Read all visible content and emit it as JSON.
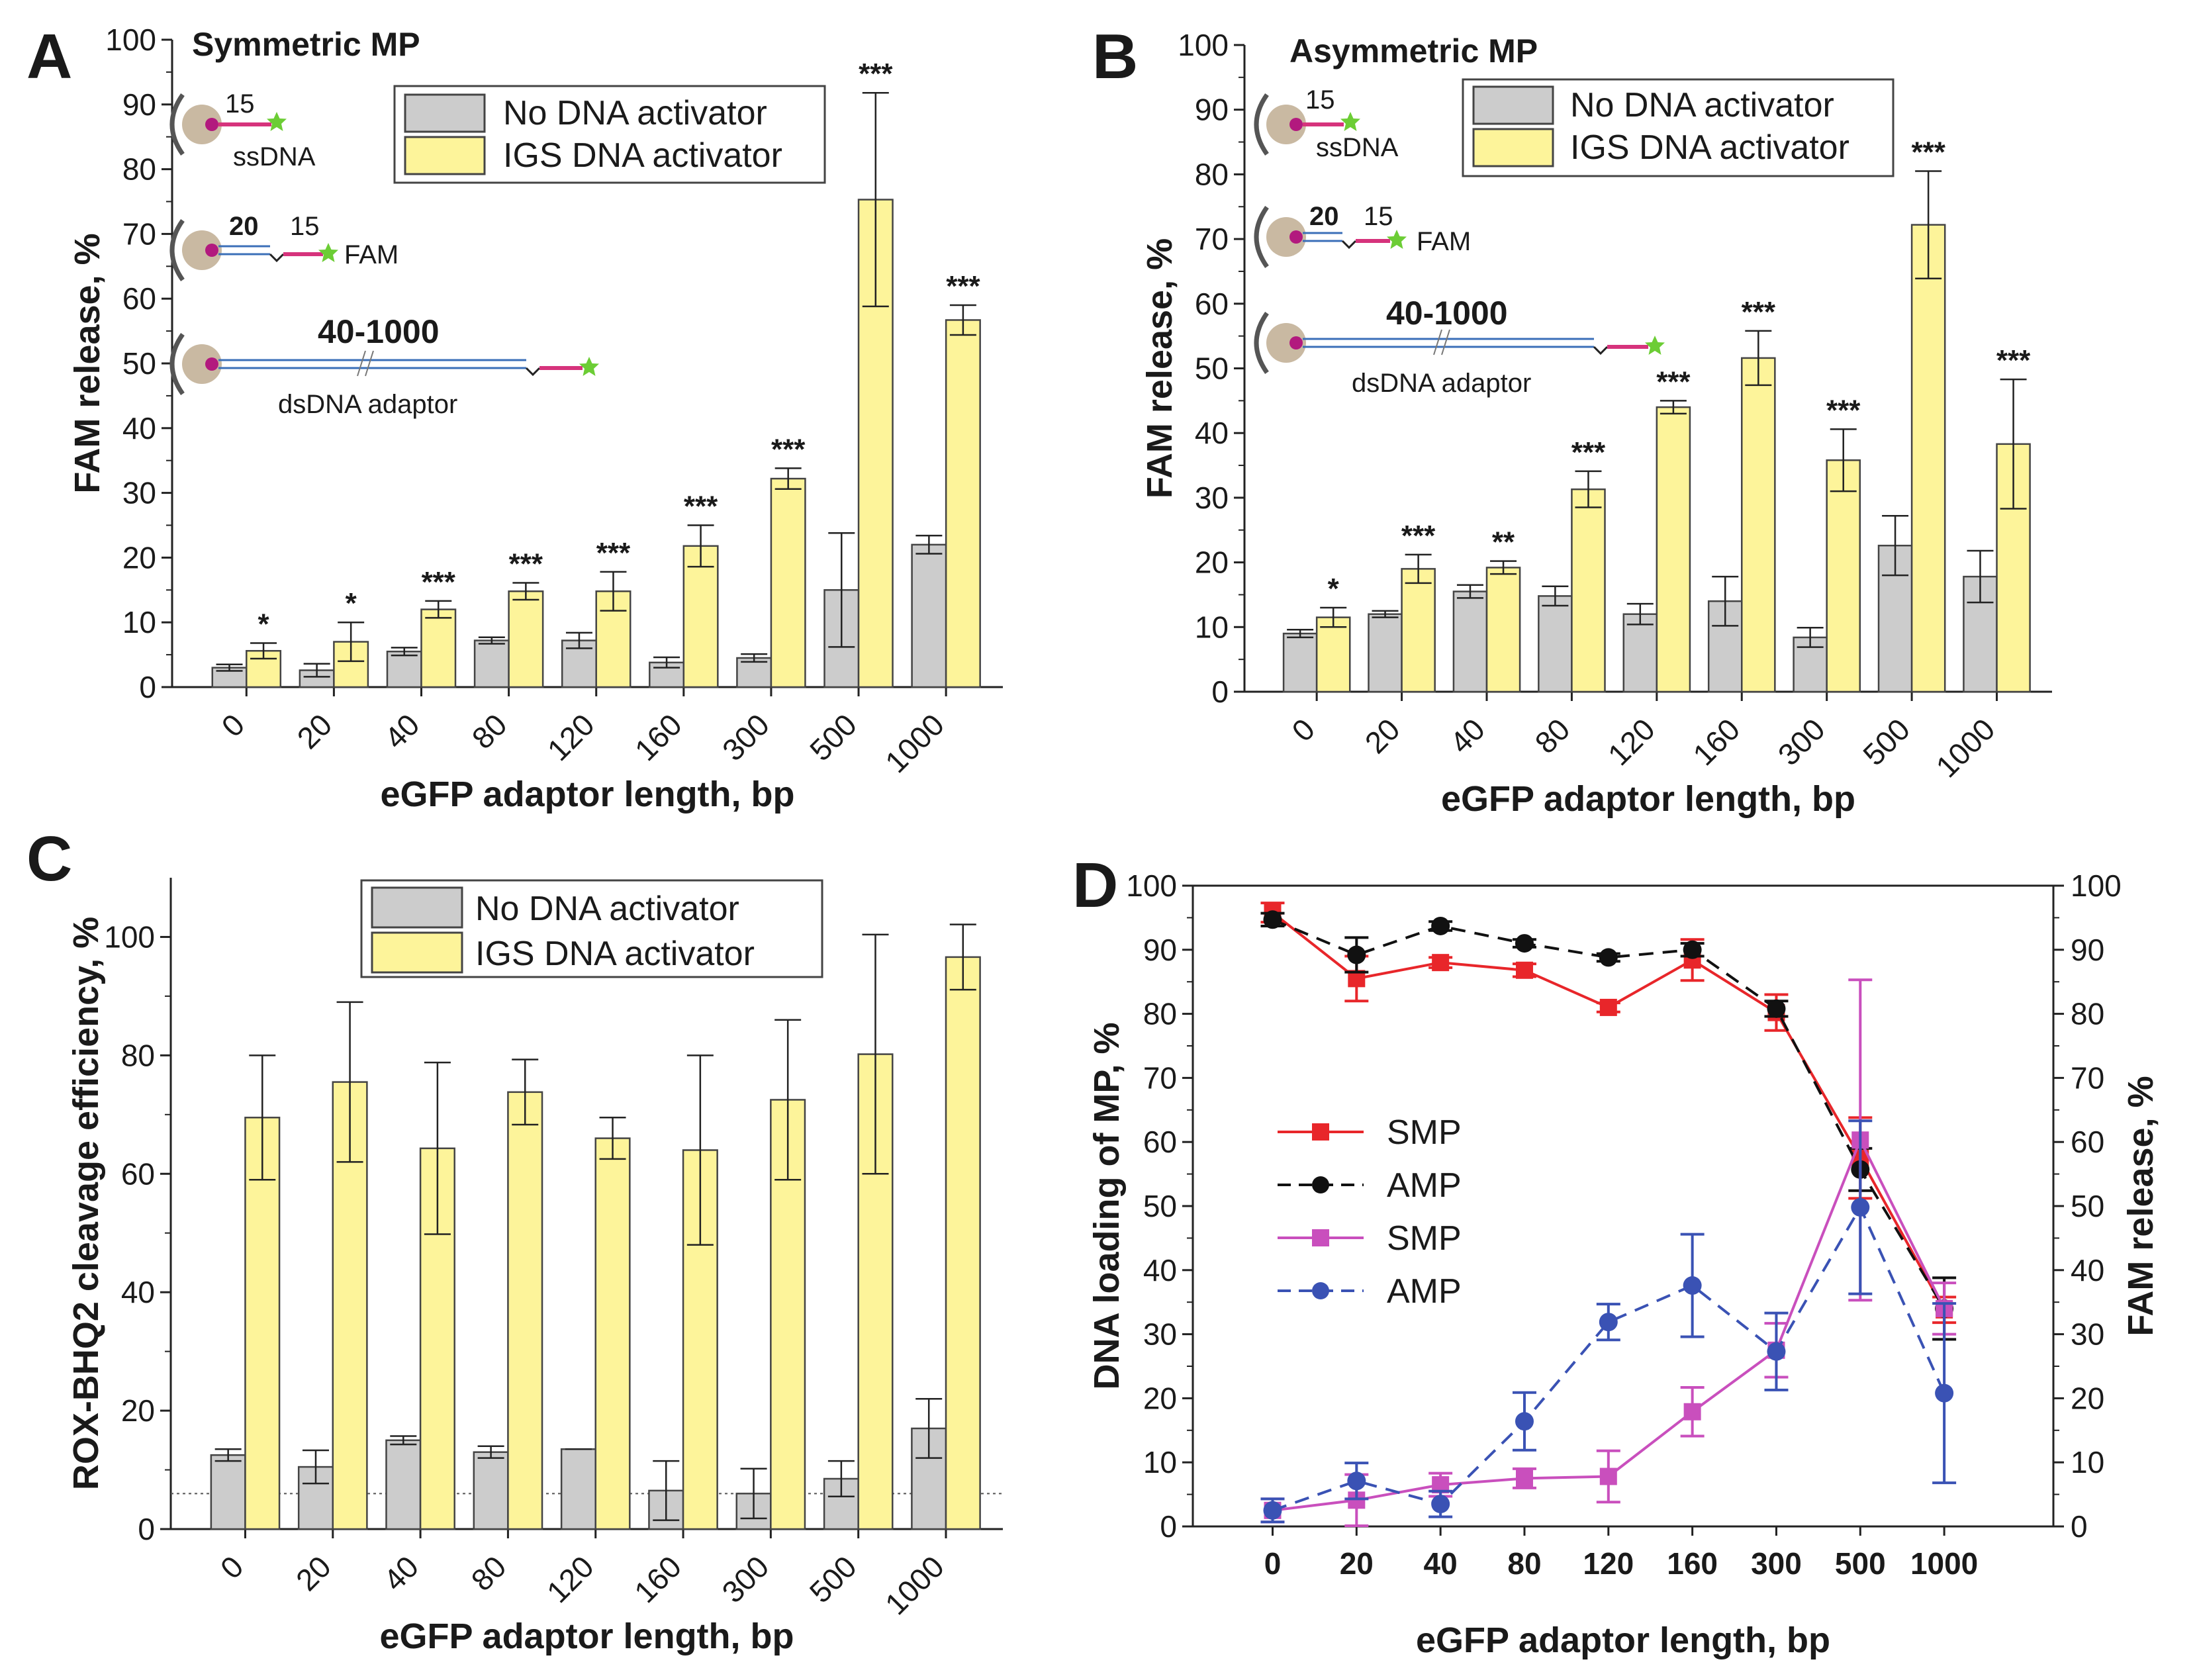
{
  "categories": [
    "0",
    "20",
    "40",
    "80",
    "120",
    "160",
    "300",
    "500",
    "1000"
  ],
  "colors": {
    "no_activator": "#cccccc",
    "igs_activator": "#fdf49a",
    "smp_loading": "#e8262a",
    "amp_loading": "#111111",
    "smp_release": "#c94fbd",
    "amp_release": "#3a52b4"
  },
  "panels": [
    {
      "id": "A",
      "title": "Symmetric MP",
      "xlabel": "eGFP adaptor length, bp",
      "ylabel": "FAM release, %",
      "ylim": [
        0,
        100
      ],
      "yticks": [
        "0",
        "10",
        "20",
        "30",
        "40",
        "50",
        "60",
        "70",
        "80",
        "90",
        "100"
      ],
      "legend": [
        "No DNA activator",
        "IGS DNA activator"
      ],
      "inset": {
        "ss_len": "15",
        "ss_label": "ssDNA",
        "short_len": "20",
        "short_len2": "15",
        "fam_label": "FAM",
        "long_len": "40-1000",
        "long_label": "dsDNA adaptor"
      }
    },
    {
      "id": "B",
      "title": "Asymmetric MP",
      "xlabel": "eGFP adaptor length, bp",
      "ylabel": "FAM release, %",
      "ylim": [
        0,
        100
      ],
      "yticks": [
        "0",
        "10",
        "20",
        "30",
        "40",
        "50",
        "60",
        "70",
        "80",
        "90",
        "100"
      ],
      "legend": [
        "No DNA activator",
        "IGS DNA activator"
      ],
      "inset": {
        "ss_len": "15",
        "ss_label": "ssDNA",
        "short_len": "20",
        "short_len2": "15",
        "fam_label": "FAM",
        "long_len": "40-1000",
        "long_label": "dsDNA adaptor"
      }
    },
    {
      "id": "C",
      "title": "",
      "xlabel": "eGFP adaptor length, bp",
      "ylabel": "ROX-BHQ2 cleavage efficiency, %",
      "ylim": [
        0,
        110
      ],
      "yticks": [
        "0",
        "20",
        "40",
        "60",
        "80",
        "100"
      ],
      "legend": [
        "No DNA activator",
        "IGS DNA activator"
      ]
    },
    {
      "id": "D",
      "title": "",
      "xlabel": "eGFP adaptor length, bp",
      "ylabel": "DNA loading of MP, %",
      "ylabel2": "FAM release, %",
      "ylim": [
        0,
        100
      ],
      "yticks": [
        "0",
        "10",
        "20",
        "30",
        "40",
        "50",
        "60",
        "70",
        "80",
        "90",
        "100"
      ],
      "legend": [
        "SMP",
        "AMP",
        "SMP",
        "AMP"
      ]
    }
  ],
  "chart_data": [
    {
      "type": "bar",
      "title": "Symmetric MP",
      "xlabel": "eGFP adaptor length, bp",
      "ylabel": "FAM release, %",
      "ylim": [
        0,
        100
      ],
      "categories": [
        "0",
        "20",
        "40",
        "80",
        "120",
        "160",
        "300",
        "500",
        "1000"
      ],
      "series": [
        {
          "name": "No DNA activator",
          "values": [
            3,
            2.6,
            5.5,
            7.2,
            7.2,
            3.8,
            4.5,
            15,
            22
          ],
          "errors": [
            0.5,
            1,
            0.6,
            0.5,
            1.2,
            0.8,
            0.6,
            8.8,
            1.4
          ]
        },
        {
          "name": "IGS DNA activator",
          "values": [
            5.6,
            7,
            12,
            14.8,
            14.8,
            21.8,
            32.2,
            75.3,
            56.7
          ],
          "errors": [
            1.2,
            3,
            1.3,
            1.3,
            3,
            3.2,
            1.6,
            16.5,
            2.3
          ]
        }
      ],
      "significance": [
        "*",
        "*",
        "***",
        "***",
        "***",
        "***",
        "***",
        "***",
        "***"
      ]
    },
    {
      "type": "bar",
      "title": "Asymmetric MP",
      "xlabel": "eGFP adaptor length, bp",
      "ylabel": "FAM release, %",
      "ylim": [
        0,
        100
      ],
      "categories": [
        "0",
        "20",
        "40",
        "80",
        "120",
        "160",
        "300",
        "500",
        "1000"
      ],
      "series": [
        {
          "name": "No DNA activator",
          "values": [
            9,
            12,
            15.5,
            14.8,
            12,
            14,
            8.4,
            22.6,
            17.8
          ],
          "errors": [
            0.6,
            0.5,
            1,
            1.5,
            1.6,
            3.8,
            1.5,
            4.6,
            4
          ]
        },
        {
          "name": "IGS DNA activator",
          "values": [
            11.5,
            19,
            19.2,
            31.3,
            44,
            51.6,
            35.8,
            72.2,
            38.3
          ],
          "errors": [
            1.5,
            2.2,
            1,
            2.8,
            1,
            4.2,
            4.8,
            8.3,
            10
          ]
        }
      ],
      "significance": [
        "*",
        "***",
        "**",
        "***",
        "***",
        "***",
        "***",
        "***",
        "***"
      ]
    },
    {
      "type": "bar",
      "title": "",
      "xlabel": "eGFP adaptor length, bp",
      "ylabel": "ROX-BHQ2 cleavage efficiency, %",
      "ylim": [
        0,
        110
      ],
      "categories": [
        "0",
        "20",
        "40",
        "80",
        "120",
        "160",
        "300",
        "500",
        "1000"
      ],
      "series": [
        {
          "name": "No DNA activator",
          "values": [
            12.5,
            10.5,
            15,
            13,
            13.5,
            6.5,
            6,
            8.5,
            17
          ],
          "errors": [
            1,
            2.8,
            0.7,
            1,
            0,
            5,
            4.2,
            3,
            5
          ]
        },
        {
          "name": "IGS DNA activator",
          "values": [
            69.5,
            75.5,
            64.3,
            73.8,
            66,
            64,
            72.5,
            80.2,
            96.6
          ],
          "errors": [
            10.5,
            13.5,
            14.5,
            5.5,
            3.5,
            16,
            13.5,
            20.2,
            5.5
          ]
        }
      ],
      "reference_line": 6
    },
    {
      "type": "line",
      "title": "",
      "xlabel": "eGFP adaptor length, bp",
      "ylabel": "DNA loading of MP, %",
      "ylabel2": "FAM release, %",
      "ylim": [
        0,
        100
      ],
      "categories": [
        "0",
        "20",
        "40",
        "80",
        "120",
        "160",
        "300",
        "500",
        "1000"
      ],
      "series": [
        {
          "name": "SMP",
          "axis": "left",
          "marker": "square",
          "dash": false,
          "values": [
            95.8,
            85.5,
            88,
            86.8,
            81,
            88.4,
            80.2,
            57.5,
            33.8
          ],
          "errors": [
            1.5,
            3.5,
            0.8,
            1,
            0.7,
            3.2,
            2.8,
            6.3,
            2
          ]
        },
        {
          "name": "AMP",
          "axis": "left",
          "marker": "circle",
          "dash": true,
          "values": [
            94.7,
            89.2,
            93.7,
            91,
            88.8,
            90,
            80.8,
            55.7,
            34
          ],
          "errors": [
            1,
            2.7,
            0.7,
            0.6,
            0.6,
            1,
            1.2,
            3.3,
            4.8
          ]
        },
        {
          "name": "SMP",
          "axis": "right",
          "marker": "square",
          "dash": false,
          "values": [
            2.5,
            4.1,
            6.5,
            7.5,
            7.8,
            17.9,
            27.5,
            60.3,
            34
          ],
          "errors": [
            1.8,
            4,
            1.8,
            1.5,
            4,
            3.8,
            4.2,
            25,
            4
          ]
        },
        {
          "name": "AMP",
          "axis": "right",
          "marker": "circle",
          "dash": true,
          "values": [
            2.5,
            7.1,
            3.5,
            16.4,
            31.9,
            37.6,
            27.3,
            49.8,
            20.8
          ],
          "errors": [
            1.8,
            2.8,
            2,
            4.5,
            2.8,
            8,
            6,
            13.5,
            14
          ]
        }
      ]
    }
  ]
}
